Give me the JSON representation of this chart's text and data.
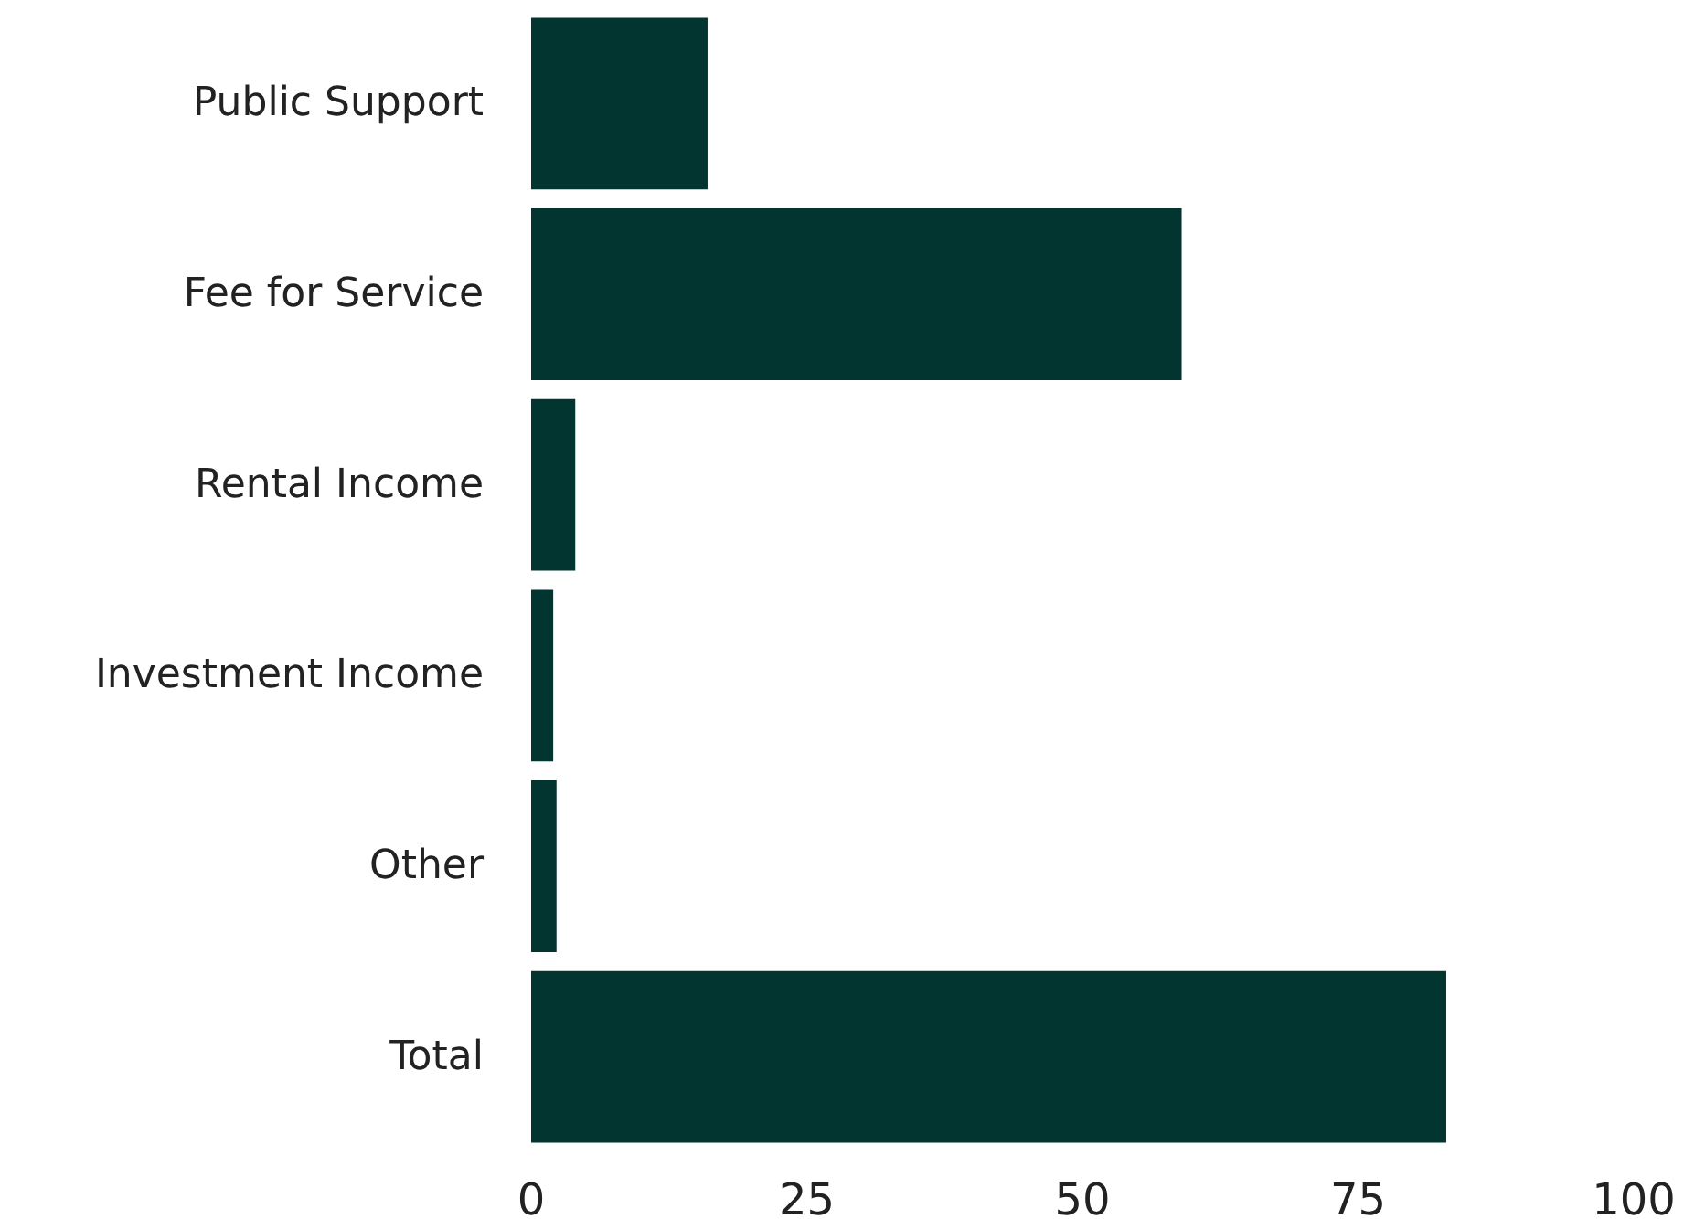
{
  "chart_data": {
    "type": "bar",
    "orientation": "horizontal",
    "categories": [
      "Public Support",
      "Fee for Service",
      "Rental Income",
      "Investment Income",
      "Other",
      "Total"
    ],
    "values": [
      16,
      59,
      4,
      2,
      2.3,
      83
    ],
    "color": "#02352f",
    "xlim": [
      0,
      100
    ],
    "xticks": [
      0,
      25,
      50,
      75,
      100
    ],
    "grid": false
  }
}
